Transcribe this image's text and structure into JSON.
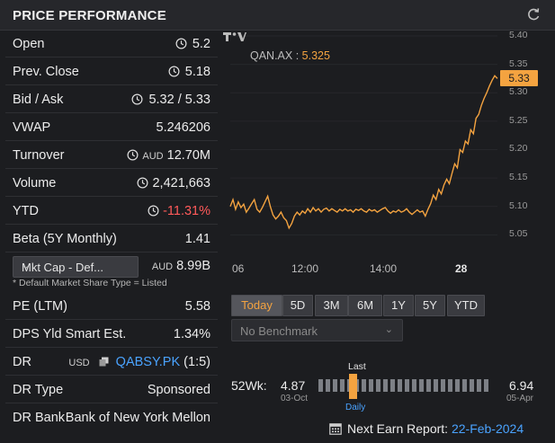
{
  "header": {
    "title": "PRICE PERFORMANCE"
  },
  "stats": {
    "open": {
      "label": "Open",
      "value": "5.2"
    },
    "prev_close": {
      "label": "Prev. Close",
      "value": "5.18"
    },
    "bid_ask": {
      "label": "Bid / Ask",
      "value": "5.32 / 5.33"
    },
    "vwap": {
      "label": "VWAP",
      "value": "5.246206"
    },
    "turnover": {
      "label": "Turnover",
      "currency": "AUD",
      "value": "12.70M"
    },
    "volume": {
      "label": "Volume",
      "value": "2,421,663"
    },
    "ytd": {
      "label": "YTD",
      "value": "-11.31%",
      "color": "#ff5a5a"
    },
    "beta": {
      "label": "Beta (5Y Monthly)",
      "value": "1.41"
    },
    "mkt_cap": {
      "select_label": "Mkt Cap - Def...",
      "currency": "AUD",
      "value": "8.99B",
      "footnote": "* Default Market Share Type = Listed"
    },
    "pe": {
      "label": "PE (LTM)",
      "value": "5.58"
    },
    "dps": {
      "label": "DPS Yld Smart Est.",
      "value": "1.34%"
    },
    "dr": {
      "label": "DR",
      "currency": "USD",
      "link": "QABSY.PK",
      "suffix": "(1:5)"
    },
    "dr_type": {
      "label": "DR Type",
      "value": "Sponsored"
    },
    "dr_bank": {
      "label": "DR Bank",
      "value": "Bank of New York Mellon"
    }
  },
  "chart_data": {
    "type": "line",
    "legend": {
      "symbol": "QAN.AX",
      "value": "5.325"
    },
    "last_price": "5.33",
    "ylim": [
      5.03,
      5.4
    ],
    "y_ticks": [
      "5.40",
      "5.35",
      "5.30",
      "5.25",
      "5.20",
      "5.15",
      "5.10",
      "5.05"
    ],
    "x_ticks": [
      "06",
      "12:00",
      "14:00",
      "28"
    ],
    "series": [
      {
        "color": "#f4a340",
        "points": [
          [
            0,
            5.1
          ],
          [
            3,
            5.112
          ],
          [
            6,
            5.095
          ],
          [
            9,
            5.108
          ],
          [
            12,
            5.098
          ],
          [
            15,
            5.104
          ],
          [
            18,
            5.09
          ],
          [
            21,
            5.097
          ],
          [
            24,
            5.105
          ],
          [
            27,
            5.112
          ],
          [
            30,
            5.095
          ],
          [
            33,
            5.09
          ],
          [
            36,
            5.098
          ],
          [
            39,
            5.108
          ],
          [
            42,
            5.118
          ],
          [
            45,
            5.1
          ],
          [
            48,
            5.085
          ],
          [
            51,
            5.078
          ],
          [
            54,
            5.083
          ],
          [
            57,
            5.09
          ],
          [
            60,
            5.08
          ],
          [
            63,
            5.075
          ],
          [
            66,
            5.062
          ],
          [
            69,
            5.07
          ],
          [
            72,
            5.083
          ],
          [
            75,
            5.09
          ],
          [
            78,
            5.085
          ],
          [
            81,
            5.092
          ],
          [
            84,
            5.088
          ],
          [
            87,
            5.096
          ],
          [
            90,
            5.09
          ],
          [
            93,
            5.098
          ],
          [
            96,
            5.092
          ],
          [
            99,
            5.096
          ],
          [
            102,
            5.09
          ],
          [
            105,
            5.095
          ],
          [
            108,
            5.097
          ],
          [
            111,
            5.092
          ],
          [
            114,
            5.096
          ],
          [
            117,
            5.093
          ],
          [
            120,
            5.09
          ],
          [
            123,
            5.095
          ],
          [
            126,
            5.092
          ],
          [
            129,
            5.096
          ],
          [
            132,
            5.092
          ],
          [
            135,
            5.094
          ],
          [
            138,
            5.09
          ],
          [
            141,
            5.095
          ],
          [
            144,
            5.093
          ],
          [
            147,
            5.096
          ],
          [
            150,
            5.092
          ],
          [
            153,
            5.09
          ],
          [
            156,
            5.095
          ],
          [
            159,
            5.092
          ],
          [
            162,
            5.094
          ],
          [
            165,
            5.09
          ],
          [
            168,
            5.093
          ],
          [
            171,
            5.096
          ],
          [
            174,
            5.098
          ],
          [
            177,
            5.092
          ],
          [
            180,
            5.088
          ],
          [
            183,
            5.092
          ],
          [
            186,
            5.09
          ],
          [
            189,
            5.094
          ],
          [
            192,
            5.09
          ],
          [
            195,
            5.092
          ],
          [
            198,
            5.096
          ],
          [
            201,
            5.09
          ],
          [
            204,
            5.086
          ],
          [
            207,
            5.09
          ],
          [
            210,
            5.094
          ],
          [
            213,
            5.09
          ],
          [
            216,
            5.092
          ],
          [
            219,
            5.083
          ],
          [
            222,
            5.095
          ],
          [
            225,
            5.105
          ],
          [
            228,
            5.12
          ],
          [
            231,
            5.112
          ],
          [
            234,
            5.13
          ],
          [
            237,
            5.122
          ],
          [
            240,
            5.138
          ],
          [
            243,
            5.148
          ],
          [
            246,
            5.14
          ],
          [
            249,
            5.158
          ],
          [
            252,
            5.175
          ],
          [
            255,
            5.168
          ],
          [
            258,
            5.2
          ],
          [
            261,
            5.195
          ],
          [
            264,
            5.215
          ],
          [
            267,
            5.21
          ],
          [
            270,
            5.235
          ],
          [
            273,
            5.228
          ],
          [
            276,
            5.255
          ],
          [
            279,
            5.262
          ],
          [
            282,
            5.278
          ],
          [
            285,
            5.29
          ],
          [
            288,
            5.3
          ],
          [
            291,
            5.312
          ],
          [
            294,
            5.322
          ],
          [
            297,
            5.33
          ],
          [
            300,
            5.325
          ]
        ]
      }
    ]
  },
  "ranges": {
    "items": [
      "Today",
      "5D",
      "3M",
      "6M",
      "1Y",
      "5Y",
      "YTD"
    ],
    "active": "Today"
  },
  "benchmark": {
    "placeholder": "No Benchmark"
  },
  "week52": {
    "label": "52Wk:",
    "low": "4.87",
    "low_date": "03-Oct",
    "high": "6.94",
    "high_date": "05-Apr",
    "last_label": "Last",
    "daily_label": "Daily",
    "last_position": 0.19
  },
  "earnings": {
    "label": "Next Earn Report:",
    "date": "22-Feb-2024"
  },
  "colors": {
    "accent": "#f4a340",
    "negative": "#ff5a5a",
    "link": "#4aa3ff"
  }
}
